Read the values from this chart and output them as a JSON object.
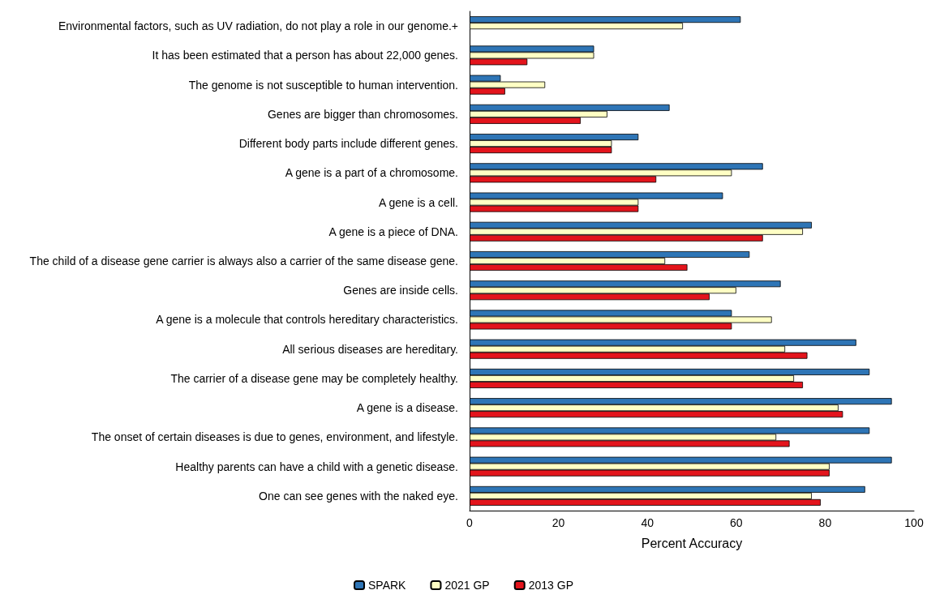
{
  "chart_data": {
    "type": "bar",
    "orientation": "horizontal",
    "xlabel": "Percent Accuracy",
    "categories": [
      "Environmental factors, such as UV radiation, do not play a role in our genome.+",
      "It has been estimated that a person has about 22,000 genes.",
      "The genome is not susceptible to human intervention.",
      "Genes are bigger than chromosomes.",
      "Different body parts include different genes.",
      "A gene is a part of a chromosome.",
      "A gene is a cell.",
      "A gene is a piece of DNA.",
      "The child of a disease gene carrier is always also a carrier of the same disease gene.",
      "Genes are inside cells.",
      "A gene is a molecule that controls hereditary characteristics.",
      "All serious diseases are hereditary.",
      "The carrier of a disease gene may be completely healthy.",
      "A gene is a disease.",
      "The onset of certain diseases is due to genes, environment, and lifestyle.",
      "Healthy parents can have a child with a genetic disease.",
      "One can see genes with the naked eye."
    ],
    "series": [
      {
        "name": "SPARK",
        "color": "#2e75b6",
        "values": [
          61,
          28,
          7,
          45,
          38,
          66,
          57,
          77,
          63,
          70,
          59,
          87,
          90,
          95,
          90,
          95,
          89
        ]
      },
      {
        "name": "2021 GP",
        "color": "#ffffc4",
        "values": [
          48,
          28,
          17,
          31,
          32,
          59,
          38,
          75,
          44,
          60,
          68,
          71,
          73,
          83,
          69,
          81,
          77
        ]
      },
      {
        "name": "2013 GP",
        "color": "#e3141c",
        "values": [
          null,
          13,
          8,
          25,
          32,
          42,
          38,
          66,
          49,
          54,
          59,
          76,
          75,
          84,
          72,
          81,
          79
        ]
      }
    ],
    "xlim": [
      0,
      100
    ],
    "xticks": [
      0,
      20,
      40,
      60,
      80,
      100
    ],
    "grid": false,
    "legend": "bottom"
  }
}
